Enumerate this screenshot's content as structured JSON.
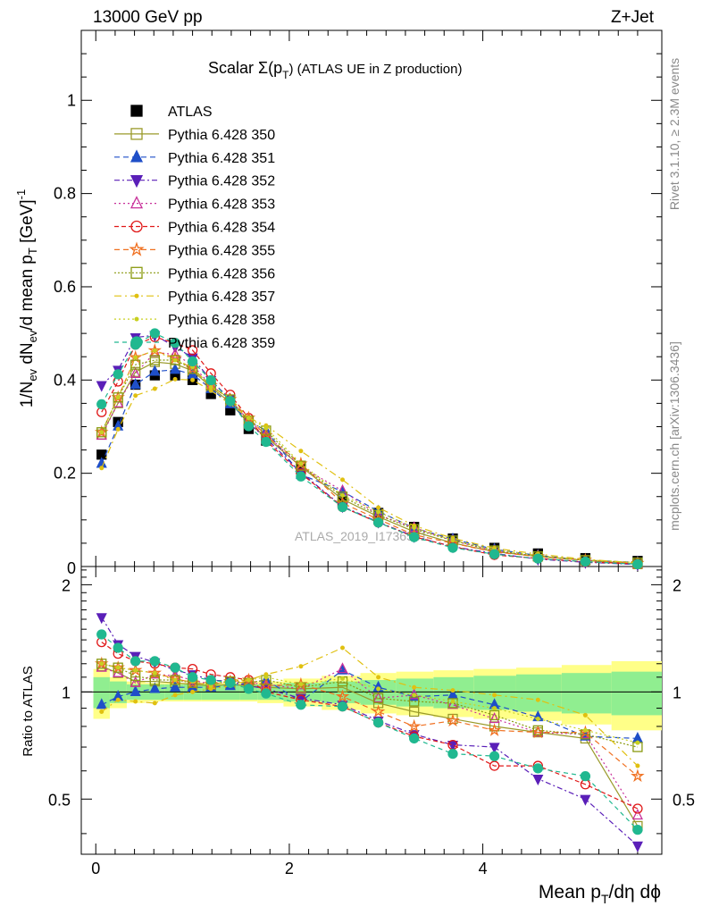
{
  "header": {
    "left": "13000 GeV pp",
    "right": "Z+Jet"
  },
  "title": "Scalar Σ(p_T) (ATLAS UE in Z production)",
  "title_parts": {
    "main": "Scalar Σ(p",
    "sub": "T",
    "rest": ") (ATLAS UE in Z production)"
  },
  "ylabel_top": "1/N_ev dN_ev/d mean p_T [GeV]^-1",
  "ylabel_bottom": "Ratio to ATLAS",
  "xlabel": "Mean p_T/dη dϕ",
  "side_right_top": "Rivet 3.1.10, ≥ 2.3M events",
  "side_right_bottom": "mcplots.cern.ch [arXiv:1306.3436]",
  "watermark": "ATLAS_2019_I1736531",
  "colors": {
    "ATLAS": "#000000",
    "350": "#9a9a2a",
    "351": "#1f4fc8",
    "352": "#5a1fb8",
    "353": "#c8309a",
    "354": "#e01818",
    "355": "#f07020",
    "356": "#8a9a10",
    "357": "#e0c010",
    "358": "#c8d020",
    "359": "#20b890",
    "band_inner": "#90ee90",
    "band_outer": "#ffff88"
  },
  "chart_data": {
    "type": "scatter",
    "x": [
      0.06,
      0.23,
      0.41,
      0.61,
      0.82,
      1.0,
      1.19,
      1.39,
      1.58,
      1.76,
      2.12,
      2.55,
      2.92,
      3.29,
      3.69,
      4.12,
      4.57,
      5.06,
      5.6
    ],
    "xlim": [
      -0.15,
      5.85
    ],
    "ylim_main": [
      0,
      1.15
    ],
    "ylim_ratio": [
      0.35,
      2.25
    ],
    "xticks": [
      0,
      2,
      4
    ],
    "yticks_main": [
      0.2,
      0.4,
      0.6,
      0.8,
      1
    ],
    "yticks_ratio": [
      0.5,
      1,
      2
    ],
    "series": [
      {
        "name": "ATLAS",
        "key": "ATLAS",
        "values": [
          0.24,
          0.31,
          0.39,
          0.41,
          0.41,
          0.4,
          0.37,
          0.335,
          0.295,
          0.27,
          0.21,
          0.14,
          0.115,
          0.085,
          0.06,
          0.04,
          0.028,
          0.018,
          0.012
        ]
      },
      {
        "name": "Pythia 6.428 350",
        "key": "350",
        "ratio": [
          1.18,
          1.13,
          1.07,
          1.07,
          1.06,
          1.05,
          1.04,
          1.05,
          1.04,
          1.03,
          1.02,
          1.03,
          0.93,
          0.88,
          0.84,
          0.8,
          0.77,
          0.74,
          0.42
        ]
      },
      {
        "name": "Pythia 6.428 351",
        "key": "351",
        "ratio": [
          0.92,
          0.97,
          1.0,
          1.02,
          1.03,
          1.03,
          1.03,
          1.04,
          1.06,
          1.08,
          0.94,
          1.15,
          1.03,
          0.97,
          0.98,
          0.92,
          0.85,
          0.75,
          0.74
        ]
      },
      {
        "name": "Pythia 6.428 352",
        "key": "352",
        "ratio": [
          1.62,
          1.36,
          1.26,
          1.21,
          1.15,
          1.12,
          1.08,
          1.07,
          1.04,
          1.02,
          0.96,
          0.92,
          0.83,
          0.76,
          0.71,
          0.7,
          0.57,
          0.5,
          0.37
        ]
      },
      {
        "name": "Pythia 6.428 353",
        "key": "353",
        "ratio": [
          1.17,
          1.13,
          1.06,
          1.12,
          1.11,
          1.08,
          1.05,
          1.07,
          1.06,
          1.05,
          1.02,
          1.16,
          0.96,
          0.98,
          0.92,
          0.84,
          0.77,
          0.76,
          0.45
        ]
      },
      {
        "name": "Pythia 6.428 354",
        "key": "354",
        "ratio": [
          1.38,
          1.28,
          1.22,
          1.2,
          1.17,
          1.16,
          1.12,
          1.1,
          1.08,
          1.0,
          0.95,
          0.91,
          0.82,
          0.75,
          0.71,
          0.62,
          0.62,
          0.55,
          0.47
        ]
      },
      {
        "name": "Pythia 6.428 355",
        "key": "355",
        "ratio": [
          1.2,
          1.17,
          1.15,
          1.13,
          1.09,
          1.06,
          1.05,
          1.07,
          1.08,
          1.04,
          1.05,
          0.97,
          0.88,
          0.8,
          0.83,
          0.78,
          0.77,
          0.77,
          0.58
        ]
      },
      {
        "name": "Pythia 6.428 356",
        "key": "356",
        "ratio": [
          1.2,
          1.17,
          1.11,
          1.08,
          1.08,
          1.06,
          1.05,
          1.07,
          1.06,
          1.08,
          1.03,
          1.07,
          0.96,
          0.94,
          0.93,
          0.86,
          0.78,
          0.76,
          0.7
        ]
      },
      {
        "name": "Pythia 6.428 357",
        "key": "357",
        "ratio": [
          0.88,
          0.95,
          0.94,
          0.93,
          0.98,
          1.0,
          1.02,
          1.04,
          1.08,
          1.12,
          1.18,
          1.33,
          1.1,
          1.03,
          1.01,
          0.98,
          0.95,
          0.86,
          0.62
        ]
      },
      {
        "name": "Pythia 6.428 358",
        "key": "358",
        "ratio": [
          1.2,
          1.17,
          1.15,
          1.13,
          1.08,
          1.07,
          1.04,
          1.08,
          1.08,
          1.1,
          1.05,
          1.09,
          1.02,
          0.98,
          0.94,
          0.9,
          0.84,
          0.78,
          0.72
        ]
      },
      {
        "name": "Pythia 6.428 359",
        "key": "359",
        "ratio": [
          1.45,
          1.33,
          1.22,
          1.22,
          1.17,
          1.1,
          1.08,
          1.06,
          1.02,
          0.99,
          0.92,
          0.91,
          0.82,
          0.74,
          0.67,
          0.66,
          0.61,
          0.58,
          0.41
        ]
      }
    ],
    "band_inner": [
      0.1,
      0.07,
      0.05,
      0.05,
      0.05,
      0.05,
      0.05,
      0.05,
      0.05,
      0.05,
      0.06,
      0.07,
      0.08,
      0.09,
      0.1,
      0.11,
      0.12,
      0.13,
      0.14
    ],
    "band_outer": [
      0.16,
      0.1,
      0.07,
      0.06,
      0.06,
      0.06,
      0.06,
      0.06,
      0.06,
      0.07,
      0.09,
      0.11,
      0.13,
      0.14,
      0.15,
      0.16,
      0.17,
      0.19,
      0.22
    ],
    "legend_placement": "top-left"
  }
}
